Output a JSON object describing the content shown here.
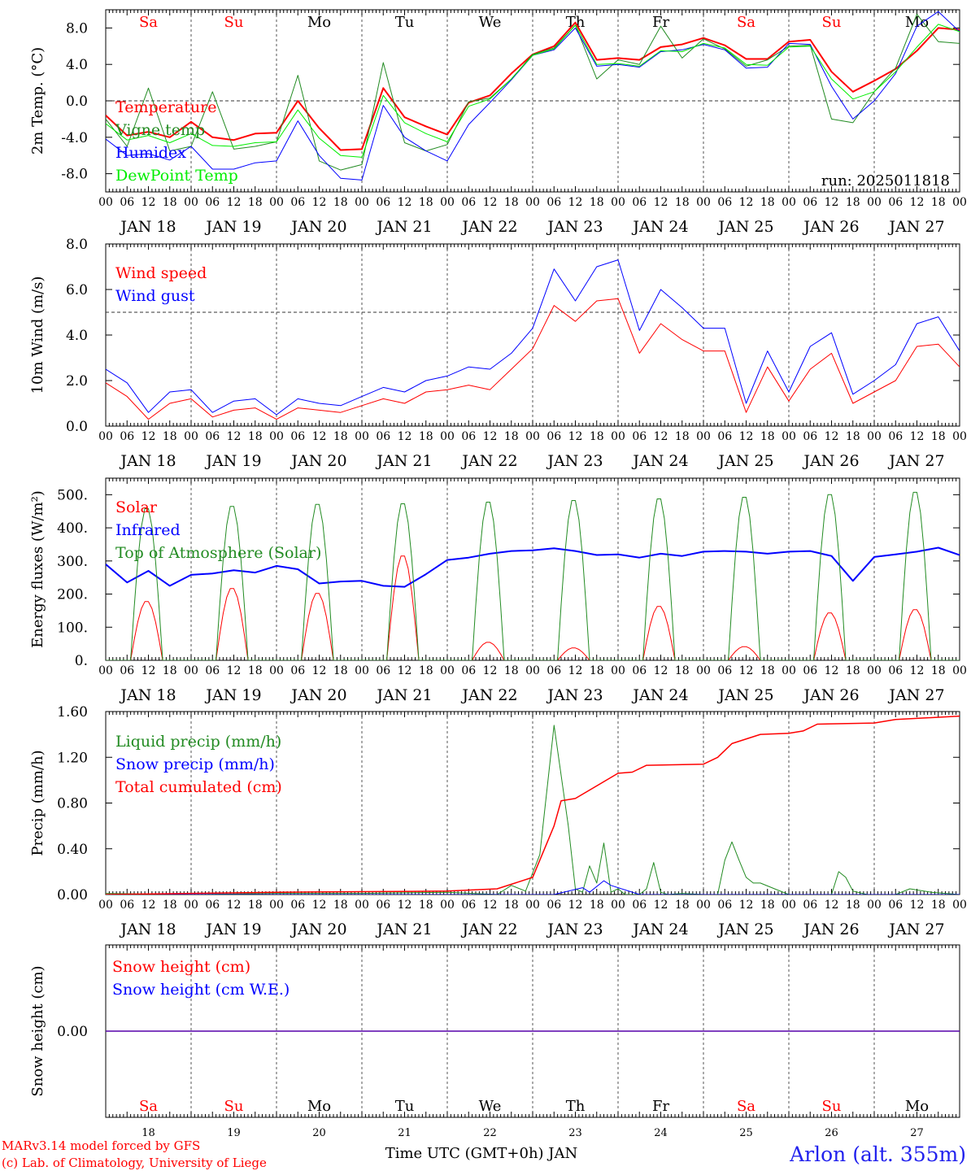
{
  "page": {
    "footer_credit_1": "MARv3.14 model forced by GFS",
    "footer_credit_2": "(c) Lab. of Climatology, University of Liege",
    "x_title": "Time UTC (GMT+0h) JAN",
    "station": "Arlon (alt. 355m)",
    "run_label": "run: 2025011818"
  },
  "colors": {
    "red": "#ff0000",
    "green": "#228b22",
    "blue": "#0000ff",
    "lime": "#00ee00",
    "black": "#000000"
  },
  "axis": {
    "hour_labels": [
      "00",
      "06",
      "12",
      "18"
    ],
    "day_labels": [
      "JAN 18",
      "JAN 19",
      "JAN 20",
      "JAN 21",
      "JAN 22",
      "JAN 23",
      "JAN 24",
      "JAN 25",
      "JAN 26",
      "JAN 27"
    ],
    "weekdays": [
      "Sa",
      "Su",
      "Mo",
      "Tu",
      "We",
      "Th",
      "Fr",
      "Sa",
      "Su",
      "Mo"
    ],
    "weekday_colors": [
      "#ff0000",
      "#ff0000",
      "#000000",
      "#000000",
      "#000000",
      "#000000",
      "#000000",
      "#ff0000",
      "#ff0000",
      "#000000"
    ],
    "day_numbers": [
      "18",
      "19",
      "20",
      "21",
      "22",
      "23",
      "24",
      "25",
      "26",
      "27"
    ]
  },
  "chart_data": [
    {
      "type": "line",
      "ylabel": "2m Temp. (°C)",
      "ylim": [
        -10,
        10
      ],
      "yticks": [
        -8,
        -4,
        0,
        4,
        8
      ],
      "ytick_labels": [
        "-8.0",
        "-4.0",
        "0.0",
        "4.0",
        "8.0"
      ],
      "ref_lines": [
        0
      ],
      "x_hours": [
        0,
        6,
        12,
        18,
        24,
        30,
        36,
        42,
        48,
        54,
        60,
        66,
        72,
        78,
        84,
        90,
        96,
        102,
        108,
        114,
        120,
        126,
        132,
        138,
        144,
        150,
        156,
        162,
        168,
        174,
        180,
        186,
        192,
        198,
        204,
        210,
        216,
        222,
        228,
        234,
        240
      ],
      "series": [
        {
          "name": "Temperature",
          "color": "#ff0000",
          "width": 2,
          "values": [
            -1.6,
            -3.8,
            -3.4,
            -4.0,
            -2.3,
            -4.0,
            -4.3,
            -3.6,
            -3.5,
            0.0,
            -3.0,
            -5.4,
            -5.3,
            1.4,
            -1.8,
            -2.8,
            -3.7,
            -0.2,
            0.6,
            3.0,
            5.1,
            6.0,
            8.6,
            4.5,
            4.7,
            4.5,
            5.9,
            6.2,
            6.9,
            6.1,
            4.6,
            4.6,
            6.5,
            6.7,
            3.2,
            1.0,
            2.2,
            3.5,
            5.5,
            8.0,
            7.8
          ]
        },
        {
          "name": "Vigne temp",
          "color": "#228b22",
          "width": 1,
          "values": [
            -2.0,
            -5.0,
            1.4,
            -5.5,
            -5.0,
            1.0,
            -5.3,
            -5.0,
            -4.5,
            2.8,
            -6.6,
            -7.6,
            -7.0,
            4.2,
            -4.6,
            -5.5,
            -4.8,
            -0.1,
            0.3,
            2.4,
            5.1,
            5.8,
            8.3,
            2.4,
            4.5,
            4.0,
            8.2,
            4.7,
            6.8,
            5.7,
            3.8,
            4.5,
            6.0,
            6.1,
            -2.0,
            -2.4,
            1.0,
            3.6,
            9.5,
            6.5,
            6.3
          ]
        },
        {
          "name": "Humidex",
          "color": "#0000ff",
          "width": 1,
          "values": [
            -4.2,
            -6.0,
            -5.8,
            -6.5,
            -5.0,
            -7.5,
            -7.5,
            -6.8,
            -6.6,
            -2.2,
            -6.0,
            -8.5,
            -8.7,
            -0.5,
            -4.0,
            -5.5,
            -6.6,
            -2.6,
            -0.2,
            2.3,
            5.0,
            5.6,
            8.0,
            3.8,
            4.0,
            3.7,
            5.4,
            5.6,
            6.2,
            5.6,
            3.6,
            3.7,
            6.3,
            6.2,
            1.6,
            -2.0,
            0.0,
            3.0,
            8.2,
            9.8,
            7.6
          ]
        },
        {
          "name": "DewPoint Temp",
          "color": "#00ee00",
          "width": 1,
          "values": [
            -2.5,
            -4.3,
            -3.8,
            -4.6,
            -3.6,
            -4.9,
            -5.0,
            -4.6,
            -4.5,
            -1.0,
            -4.1,
            -6.0,
            -6.2,
            0.6,
            -2.4,
            -3.6,
            -4.5,
            -0.6,
            0.2,
            2.4,
            5.0,
            5.7,
            8.3,
            4.0,
            4.1,
            3.8,
            5.5,
            5.4,
            6.3,
            5.8,
            4.0,
            3.9,
            5.9,
            6.0,
            2.4,
            0.2,
            1.0,
            3.2,
            5.9,
            8.4,
            7.6
          ]
        }
      ]
    },
    {
      "type": "line",
      "ylabel": "10m Wind (m/s)",
      "ylim": [
        0,
        8
      ],
      "yticks": [
        0,
        2,
        4,
        6,
        8
      ],
      "ytick_labels": [
        "0.0",
        "2.0",
        "4.0",
        "6.0",
        "8.0"
      ],
      "ref_lines": [
        5
      ],
      "x_hours": [
        0,
        6,
        12,
        18,
        24,
        30,
        36,
        42,
        48,
        54,
        60,
        66,
        72,
        78,
        84,
        90,
        96,
        102,
        108,
        114,
        120,
        126,
        132,
        138,
        144,
        150,
        156,
        162,
        168,
        174,
        180,
        186,
        192,
        198,
        204,
        210,
        216,
        222,
        228,
        234,
        240
      ],
      "series": [
        {
          "name": "Wind speed",
          "color": "#ff0000",
          "width": 1,
          "values": [
            1.9,
            1.3,
            0.3,
            1.0,
            1.2,
            0.4,
            0.7,
            0.8,
            0.3,
            0.8,
            0.7,
            0.6,
            0.9,
            1.2,
            1.0,
            1.5,
            1.6,
            1.8,
            1.6,
            2.5,
            3.4,
            5.3,
            4.6,
            5.5,
            5.6,
            3.2,
            4.5,
            3.8,
            3.3,
            3.3,
            0.6,
            2.6,
            1.1,
            2.5,
            3.2,
            1.0,
            1.5,
            2.0,
            3.5,
            3.6,
            2.6
          ]
        },
        {
          "name": "Wind gust",
          "color": "#0000ff",
          "width": 1,
          "values": [
            2.5,
            1.9,
            0.6,
            1.5,
            1.6,
            0.6,
            1.1,
            1.2,
            0.5,
            1.2,
            1.0,
            0.9,
            1.3,
            1.7,
            1.5,
            2.0,
            2.2,
            2.6,
            2.5,
            3.2,
            4.3,
            6.9,
            5.5,
            7.0,
            7.3,
            4.2,
            6.0,
            5.2,
            4.3,
            4.3,
            1.0,
            3.3,
            1.5,
            3.5,
            4.1,
            1.4,
            2.0,
            2.7,
            4.5,
            4.8,
            3.3
          ]
        }
      ]
    },
    {
      "type": "line",
      "ylabel": "Energy fluxes (W/m²)",
      "ylim": [
        0,
        550
      ],
      "yticks": [
        0,
        100,
        200,
        300,
        400,
        500
      ],
      "ytick_labels": [
        "0.",
        "100.",
        "200.",
        "300.",
        "400.",
        "500."
      ],
      "ref_lines": [],
      "solar_days": {
        "rise_hour": 7,
        "noon_hour": 11.5,
        "set_hour": 16,
        "toa_peaks": [
          465,
          472,
          478,
          480,
          485,
          490,
          495,
          500,
          508,
          515
        ],
        "solar_peaks": [
          180,
          220,
          205,
          320,
          55,
          38,
          165,
          42,
          145,
          155
        ]
      },
      "series": [
        {
          "name": "Solar",
          "color": "#ff0000",
          "width": 1,
          "source": "solar_peaks"
        },
        {
          "name": "Infrared",
          "color": "#0000ff",
          "width": 2,
          "x_hours": [
            0,
            6,
            12,
            18,
            24,
            30,
            36,
            42,
            48,
            54,
            60,
            66,
            72,
            78,
            84,
            90,
            96,
            102,
            108,
            114,
            120,
            126,
            132,
            138,
            144,
            150,
            156,
            162,
            168,
            174,
            180,
            186,
            192,
            198,
            204,
            210,
            216,
            222,
            228,
            234,
            240
          ],
          "values": [
            290,
            235,
            270,
            225,
            258,
            262,
            272,
            265,
            285,
            275,
            232,
            238,
            240,
            225,
            222,
            260,
            303,
            310,
            322,
            330,
            332,
            338,
            330,
            318,
            320,
            310,
            322,
            315,
            328,
            330,
            328,
            322,
            328,
            330,
            315,
            240,
            312,
            320,
            328,
            340,
            318
          ]
        },
        {
          "name": "Top of Atmosphere (Solar)",
          "color": "#228b22",
          "width": 1,
          "source": "toa_peaks"
        }
      ]
    },
    {
      "type": "line",
      "ylabel": "Precip (mm/h)",
      "ylim": [
        0,
        1.6
      ],
      "yticks": [
        0,
        0.4,
        0.8,
        1.2,
        1.6
      ],
      "ytick_labels": [
        "0.00",
        "0.40",
        "0.80",
        "1.20",
        "1.60"
      ],
      "ref_lines": [],
      "series": [
        {
          "name": "Liquid precip (mm/h)",
          "color": "#228b22",
          "width": 1,
          "x_hours": [
            0,
            24,
            48,
            72,
            96,
            110,
            114,
            118,
            122,
            126,
            130,
            132,
            134,
            136,
            138,
            140,
            142,
            144,
            146,
            150,
            152,
            154,
            156,
            158,
            162,
            168,
            172,
            174,
            176,
            178,
            180,
            182,
            184,
            188,
            192,
            198,
            204,
            206,
            208,
            210,
            214,
            222,
            226,
            232,
            240
          ],
          "values": [
            0.01,
            0.0,
            0.01,
            0.01,
            0.02,
            0.0,
            0.08,
            0.03,
            0.35,
            1.48,
            0.6,
            0.05,
            0.02,
            0.25,
            0.1,
            0.45,
            0.02,
            0.05,
            0.0,
            0.0,
            0.05,
            0.28,
            0.02,
            0.0,
            0.01,
            0.0,
            0.0,
            0.3,
            0.46,
            0.3,
            0.15,
            0.1,
            0.1,
            0.05,
            0.0,
            0.0,
            0.0,
            0.2,
            0.15,
            0.03,
            0.0,
            0.0,
            0.05,
            0.02,
            0.0
          ]
        },
        {
          "name": "Snow precip (mm/h)",
          "color": "#0000ff",
          "width": 1,
          "x_hours": [
            0,
            110,
            126,
            134,
            136,
            140,
            142,
            146,
            150,
            240
          ],
          "values": [
            0.0,
            0.0,
            0.0,
            0.06,
            0.02,
            0.12,
            0.08,
            0.04,
            0.0,
            0.0
          ]
        },
        {
          "name": "Total cumulated (cm)",
          "color": "#ff0000",
          "width": 1.5,
          "x_hours": [
            0,
            48,
            96,
            110,
            120,
            126,
            128,
            132,
            138,
            144,
            148,
            152,
            168,
            172,
            176,
            184,
            192,
            196,
            200,
            216,
            222,
            240
          ],
          "values": [
            0.0,
            0.02,
            0.03,
            0.05,
            0.15,
            0.6,
            0.82,
            0.84,
            0.95,
            1.06,
            1.07,
            1.13,
            1.14,
            1.2,
            1.32,
            1.4,
            1.41,
            1.43,
            1.49,
            1.5,
            1.53,
            1.56
          ]
        }
      ]
    },
    {
      "type": "line",
      "ylabel": "Snow height (cm)",
      "ylim": [
        -1,
        1
      ],
      "yticks": [
        0
      ],
      "ytick_labels": [
        "0.00"
      ],
      "ref_lines": [],
      "series": [
        {
          "name": "Snow height (cm)",
          "color": "#ff0000",
          "width": 1.5,
          "x_hours": [
            0,
            240
          ],
          "values": [
            0,
            0
          ]
        },
        {
          "name": "Snow height (cm W.E.)",
          "color": "#0000ff",
          "width": 1,
          "x_hours": [
            0,
            240
          ],
          "values": [
            0,
            0
          ]
        }
      ]
    }
  ]
}
